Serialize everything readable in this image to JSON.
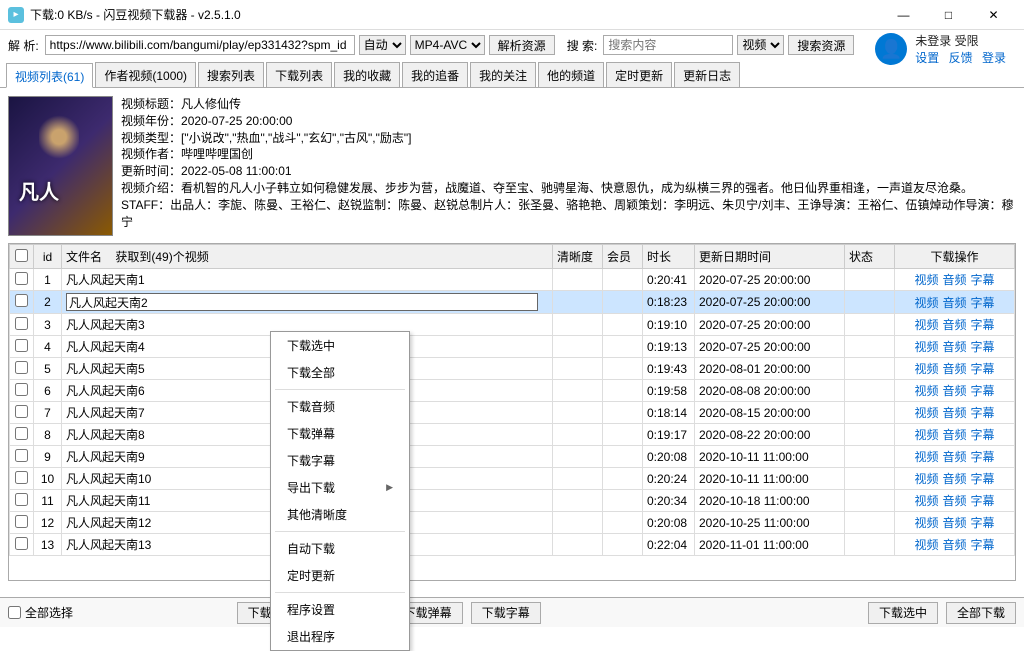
{
  "window": {
    "title": "下载:0 KB/s - 闪豆视频下载器 - v2.5.1.0",
    "minimize": "—",
    "maximize": "□",
    "close": "✕"
  },
  "toolbar": {
    "parse_label": "解 析:",
    "url": "https://www.bilibili.com/bangumi/play/ep331432?spm_id",
    "auto": "自动",
    "format": "MP4-AVC",
    "parse_btn": "解析资源",
    "search_label": "搜 索:",
    "search_placeholder": "搜索内容",
    "search_type": "视频",
    "search_btn": "搜索资源"
  },
  "user": {
    "status": "未登录 受限",
    "settings": "设置",
    "feedback": "反馈",
    "login": "登录"
  },
  "tabs": [
    "视频列表(61)",
    "作者视频(1000)",
    "搜索列表",
    "下载列表",
    "我的收藏",
    "我的追番",
    "我的关注",
    "他的频道",
    "定时更新",
    "更新日志"
  ],
  "info": {
    "title_label": "视频标题：",
    "title": "凡人修仙传",
    "year_label": "视频年份：",
    "year": "2020-07-25 20:00:00",
    "type_label": "视频类型：",
    "type": "[\"小说改\",\"热血\",\"战斗\",\"玄幻\",\"古风\",\"励志\"]",
    "author_label": "视频作者：",
    "author": "哔哩哔哩国创",
    "update_label": "更新时间：",
    "update": "2022-05-08 11:00:01",
    "intro_label": "视频介绍：",
    "intro": "看机智的凡人小子韩立如何稳健发展、步步为营，战魔道、夺至宝、驰骋星海、快意恩仇，成为纵横三界的强者。他日仙界重相逢，一声道友尽沧桑。",
    "staff_label": "STAFF：",
    "staff": "出品人：李旎、陈曼、王裕仁、赵锐监制：陈曼、赵锐总制片人：张圣曼、骆艳艳、周颖策划：李明远、朱贝宁/刘丰、王诤导演：王裕仁、伍镇焯动作导演：穆宁"
  },
  "table": {
    "headers": {
      "id": "id",
      "name": "文件名",
      "count": "获取到(49)个视频",
      "clarity": "清晰度",
      "vip": "会员",
      "duration": "时长",
      "date": "更新日期时间",
      "status": "状态",
      "action": "下载操作"
    },
    "action_links": {
      "video": "视频",
      "audio": "音频",
      "sub": "字幕"
    },
    "rows": [
      {
        "id": 1,
        "name": "凡人风起天南1",
        "dur": "0:20:41",
        "date": "2020-07-25 20:00:00"
      },
      {
        "id": 2,
        "name": "凡人风起天南2",
        "dur": "0:18:23",
        "date": "2020-07-25 20:00:00",
        "selected": true,
        "editing": true
      },
      {
        "id": 3,
        "name": "凡人风起天南3",
        "dur": "0:19:10",
        "date": "2020-07-25 20:00:00"
      },
      {
        "id": 4,
        "name": "凡人风起天南4",
        "dur": "0:19:13",
        "date": "2020-07-25 20:00:00"
      },
      {
        "id": 5,
        "name": "凡人风起天南5",
        "dur": "0:19:43",
        "date": "2020-08-01 20:00:00"
      },
      {
        "id": 6,
        "name": "凡人风起天南6",
        "dur": "0:19:58",
        "date": "2020-08-08 20:00:00"
      },
      {
        "id": 7,
        "name": "凡人风起天南7",
        "dur": "0:18:14",
        "date": "2020-08-15 20:00:00"
      },
      {
        "id": 8,
        "name": "凡人风起天南8",
        "dur": "0:19:17",
        "date": "2020-08-22 20:00:00"
      },
      {
        "id": 9,
        "name": "凡人风起天南9",
        "dur": "0:20:08",
        "date": "2020-10-11 11:00:00"
      },
      {
        "id": 10,
        "name": "凡人风起天南10",
        "dur": "0:20:24",
        "date": "2020-10-11 11:00:00"
      },
      {
        "id": 11,
        "name": "凡人风起天南11",
        "dur": "0:20:34",
        "date": "2020-10-18 11:00:00"
      },
      {
        "id": 12,
        "name": "凡人风起天南12",
        "dur": "0:20:08",
        "date": "2020-10-25 11:00:00"
      },
      {
        "id": 13,
        "name": "凡人风起天南13",
        "dur": "0:22:04",
        "date": "2020-11-01 11:00:00"
      }
    ]
  },
  "context_menu": [
    {
      "label": "下载选中"
    },
    {
      "label": "下载全部"
    },
    {
      "sep": true
    },
    {
      "label": "下载音频"
    },
    {
      "label": "下载弹幕"
    },
    {
      "label": "下载字幕"
    },
    {
      "label": "导出下载",
      "arrow": true
    },
    {
      "label": "其他清晰度"
    },
    {
      "sep": true
    },
    {
      "label": "自动下载"
    },
    {
      "label": "定时更新"
    },
    {
      "sep": true
    },
    {
      "label": "程序设置"
    },
    {
      "label": "退出程序"
    }
  ],
  "bottom": {
    "select_all": "全部选择",
    "cover": "下载封面",
    "audio": "下载音频",
    "danmu": "下载弹幕",
    "sub": "下载字幕",
    "selected": "下载选中",
    "all": "全部下载"
  }
}
